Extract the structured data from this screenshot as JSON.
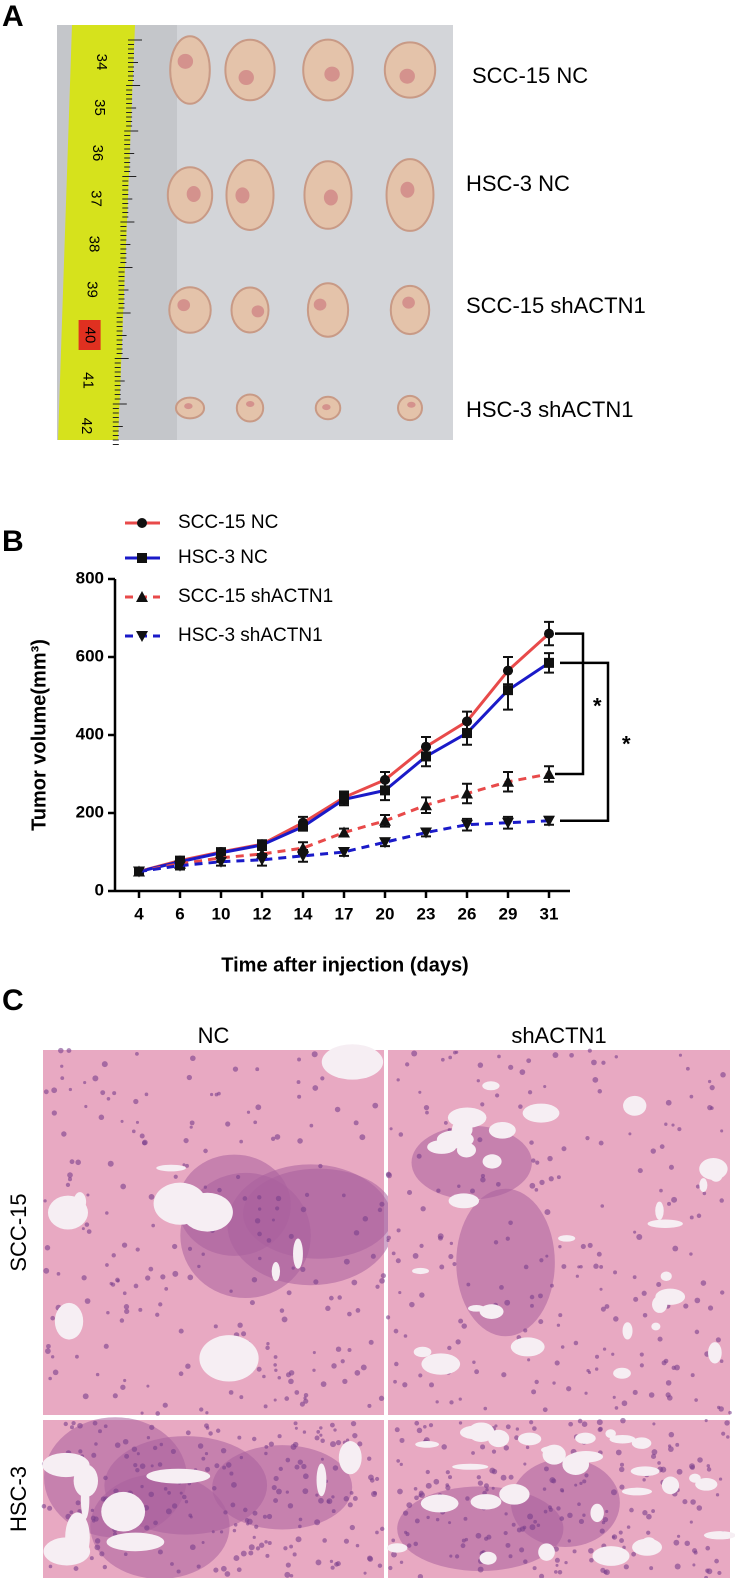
{
  "panel_a": {
    "letter": "A",
    "labels": [
      "SCC-15 NC",
      "HSC-3 NC",
      "SCC-15 shACTN1",
      "HSC-3 shACTN1"
    ],
    "ruler": [
      "34",
      "35",
      "36",
      "37",
      "38",
      "39",
      "40",
      "41",
      "42"
    ]
  },
  "chart_data": {
    "type": "line",
    "panel_letter": "B",
    "xlabel": "Time after injection (days)",
    "ylabel": "Tumor volume(mm³)",
    "categories": [
      "4",
      "6",
      "10",
      "12",
      "14",
      "17",
      "20",
      "23",
      "26",
      "29",
      "31"
    ],
    "ylim": [
      0,
      800
    ],
    "yticks": [
      0,
      200,
      400,
      600,
      800
    ],
    "series": [
      {
        "name": "SCC-15 NC",
        "color": "#e84a4a",
        "marker": "circle",
        "dashed": false,
        "values": [
          50,
          78,
          100,
          120,
          175,
          240,
          285,
          370,
          435,
          565,
          660
        ],
        "errors": [
          10,
          10,
          10,
          10,
          15,
          15,
          20,
          25,
          25,
          35,
          30
        ]
      },
      {
        "name": "HSC-3 NC",
        "color": "#1a1ac8",
        "marker": "square",
        "dashed": false,
        "values": [
          50,
          75,
          98,
          118,
          165,
          235,
          258,
          345,
          405,
          515,
          585
        ],
        "errors": [
          10,
          10,
          10,
          10,
          10,
          15,
          25,
          25,
          30,
          50,
          25
        ]
      },
      {
        "name": "SCC-15 shACTN1",
        "color": "#e84a4a",
        "marker": "triangle-up",
        "dashed": true,
        "values": [
          50,
          70,
          85,
          95,
          110,
          150,
          180,
          220,
          250,
          280,
          300
        ],
        "errors": [
          10,
          10,
          10,
          10,
          15,
          10,
          15,
          20,
          25,
          25,
          20
        ]
      },
      {
        "name": "HSC-3 shACTN1",
        "color": "#1a1ac8",
        "marker": "triangle-down",
        "dashed": true,
        "values": [
          50,
          65,
          75,
          80,
          90,
          100,
          125,
          150,
          170,
          175,
          180
        ],
        "errors": [
          10,
          10,
          10,
          15,
          15,
          10,
          10,
          10,
          15,
          15,
          10
        ]
      }
    ],
    "annotations": [
      "*",
      "*"
    ]
  },
  "panel_c": {
    "letter": "C",
    "columns": [
      "NC",
      "shACTN1"
    ],
    "rows": [
      "SCC-15",
      "HSC-3"
    ]
  }
}
